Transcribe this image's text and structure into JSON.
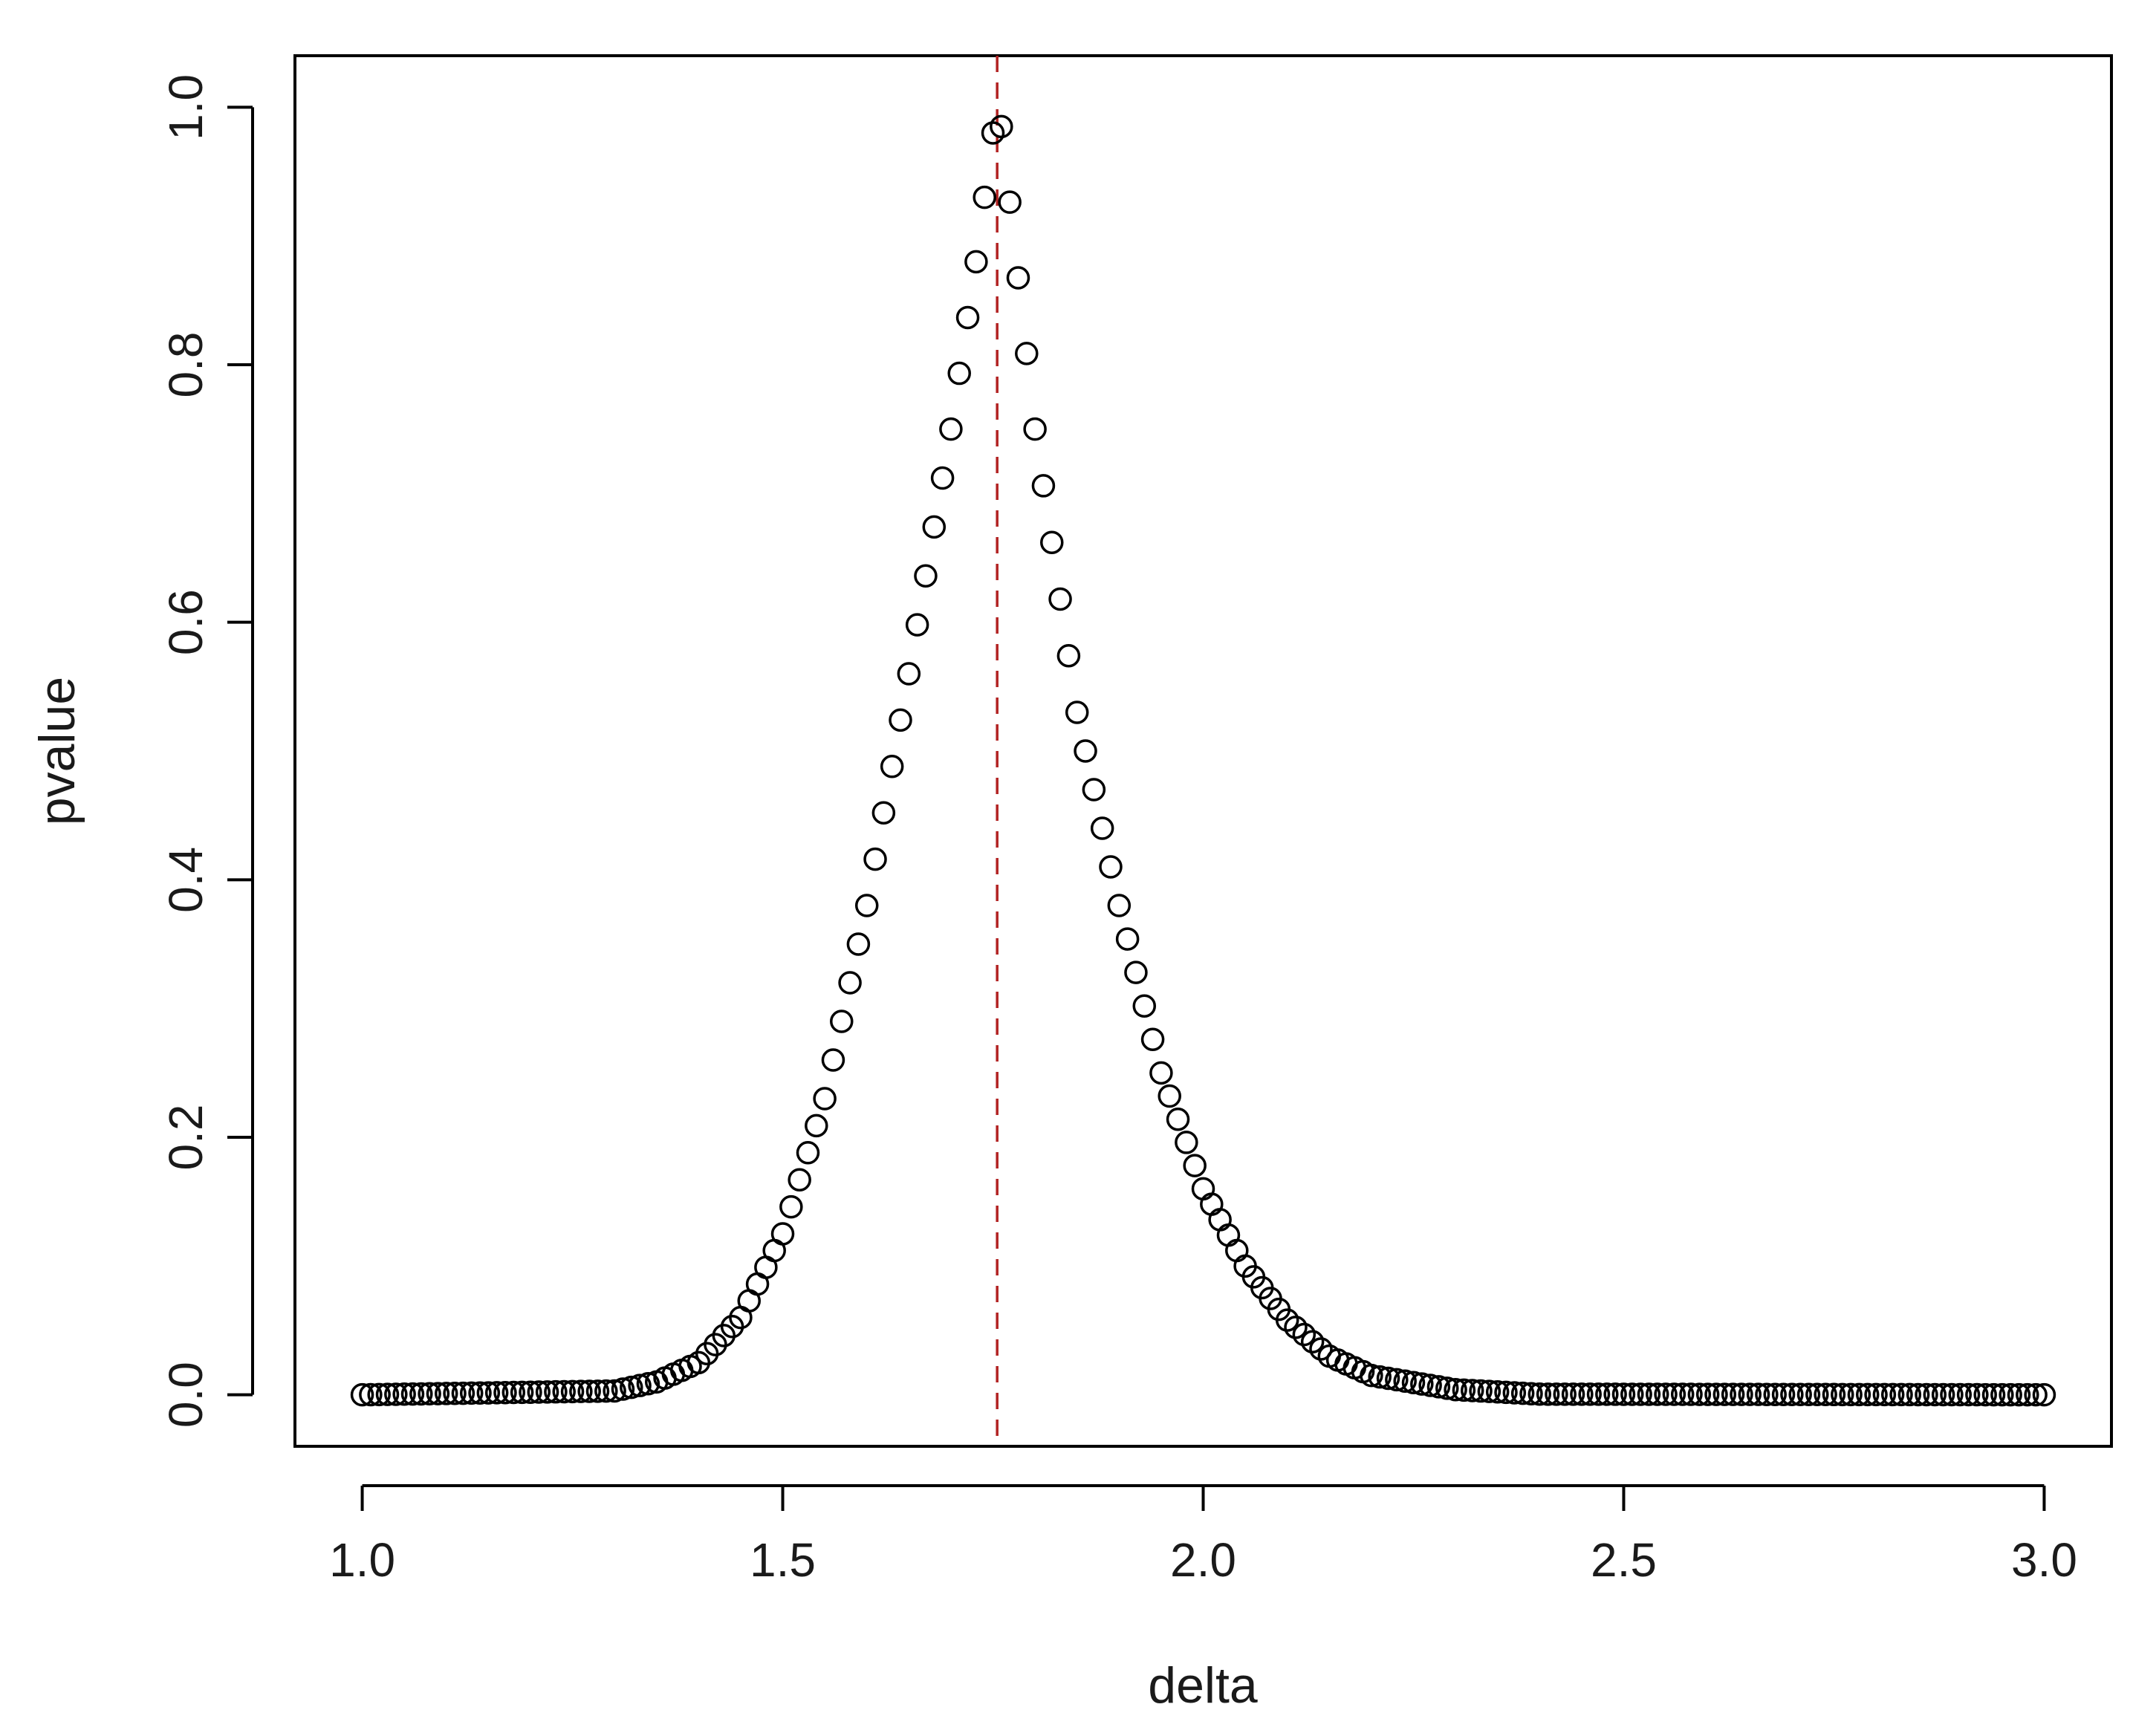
{
  "chart_data": {
    "type": "scatter",
    "title": "",
    "xlabel": "delta",
    "ylabel": "pvalue",
    "xlim": [
      0.92,
      3.08
    ],
    "ylim": [
      -0.04,
      1.04
    ],
    "x_ticks": [
      "1.0",
      "1.5",
      "2.0",
      "2.5",
      "3.0"
    ],
    "y_ticks": [
      "0.0",
      "0.2",
      "0.4",
      "0.6",
      "0.8",
      "1.0"
    ],
    "reference_line": {
      "x": 1.755,
      "color": "#b22222",
      "style": "dashed"
    },
    "marker": "open-circle",
    "marker_color": "#000000",
    "grid": false,
    "legend": "none",
    "series": [
      {
        "x_start": 1.0,
        "x_end": 3.0,
        "x_step": 0.01,
        "x_points": [
          1.0,
          1.3,
          1.35,
          1.4,
          1.45,
          1.5,
          1.55,
          1.6,
          1.65,
          1.7,
          1.73,
          1.75,
          1.76,
          1.8,
          1.85,
          1.9,
          1.95,
          2.0,
          2.05,
          2.1,
          2.15,
          2.2,
          2.3,
          2.4,
          3.0
        ],
        "y_points": [
          0.0,
          0.003,
          0.01,
          0.025,
          0.06,
          0.125,
          0.23,
          0.38,
          0.56,
          0.75,
          0.88,
          0.98,
          0.985,
          0.75,
          0.53,
          0.38,
          0.25,
          0.16,
          0.1,
          0.058,
          0.03,
          0.015,
          0.004,
          0.0005,
          0.0
        ]
      }
    ]
  }
}
